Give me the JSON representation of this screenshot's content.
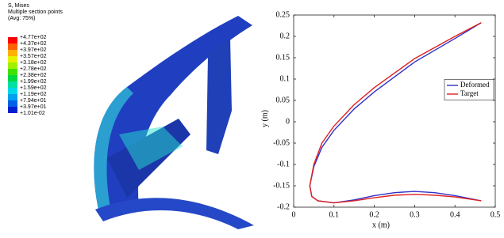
{
  "contour_legend": {
    "title": "S, Mises",
    "subtitle": "Multiple section points",
    "note": "(Avg: 75%)",
    "labels": [
      "+4.77e+02",
      "+4.37e+02",
      "+3.97e+02",
      "+3.57e+02",
      "+3.18e+02",
      "+2.78e+02",
      "+2.38e+02",
      "+1.99e+02",
      "+1.59e+02",
      "+1.19e+02",
      "+7.94e+01",
      "+3.97e+01",
      "+1.01e-02"
    ]
  },
  "chart_data": {
    "type": "line",
    "xlabel": "x (m)",
    "ylabel": "y (m)",
    "xlim": [
      0,
      0.5
    ],
    "xticks": [
      0,
      0.1,
      0.2,
      0.3,
      0.4,
      0.5
    ],
    "ylim": [
      -0.2,
      0.25
    ],
    "yticks": [
      -0.2,
      -0.15,
      -0.1,
      -0.05,
      0,
      0.05,
      0.1,
      0.15,
      0.2,
      0.25
    ],
    "legend": "right",
    "series": [
      {
        "name": "Deformed",
        "color": "#3030c8",
        "x": [
          0.465,
          0.4,
          0.3,
          0.2,
          0.15,
          0.1,
          0.07,
          0.05,
          0.04,
          0.045,
          0.06,
          0.1,
          0.15,
          0.2,
          0.25,
          0.3,
          0.35,
          0.4,
          0.465
        ],
        "values": [
          0.232,
          0.195,
          0.14,
          0.07,
          0.03,
          -0.02,
          -0.06,
          -0.105,
          -0.15,
          -0.175,
          -0.185,
          -0.19,
          -0.183,
          -0.173,
          -0.166,
          -0.163,
          -0.166,
          -0.173,
          -0.185
        ]
      },
      {
        "name": "Target",
        "color": "#e02020",
        "x": [
          0.465,
          0.4,
          0.3,
          0.2,
          0.15,
          0.1,
          0.07,
          0.05,
          0.04,
          0.045,
          0.06,
          0.1,
          0.15,
          0.2,
          0.25,
          0.3,
          0.35,
          0.4,
          0.465
        ],
        "values": [
          0.232,
          0.2,
          0.148,
          0.08,
          0.04,
          -0.01,
          -0.05,
          -0.1,
          -0.15,
          -0.175,
          -0.185,
          -0.19,
          -0.185,
          -0.178,
          -0.172,
          -0.17,
          -0.172,
          -0.176,
          -0.185
        ]
      }
    ]
  }
}
